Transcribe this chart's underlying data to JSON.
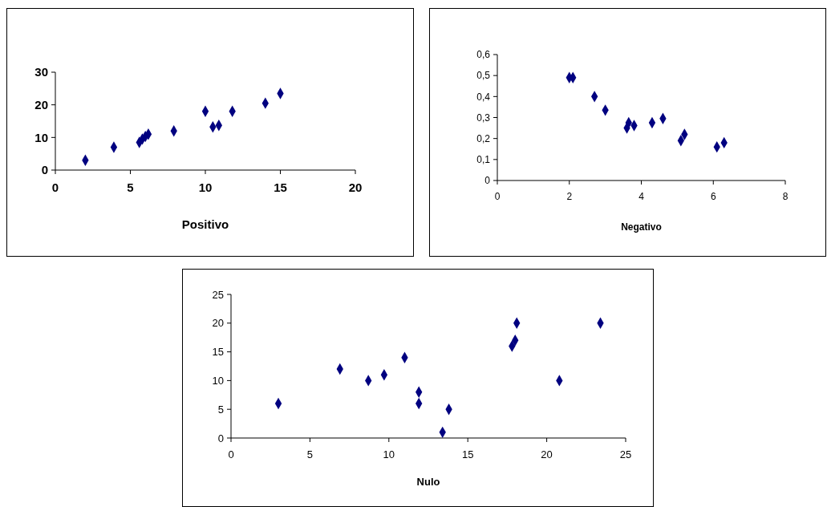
{
  "chart_data": [
    {
      "type": "scatter",
      "xlabel": "Positivo",
      "marker": "diamond",
      "color": "#000080",
      "xlim": [
        0,
        20
      ],
      "xticks": [
        0,
        5,
        10,
        15,
        20
      ],
      "ylim": [
        0,
        30
      ],
      "yticks": [
        0,
        10,
        20,
        30
      ],
      "grid": false,
      "x": [
        2,
        3.9,
        5.6,
        5.8,
        6,
        6.2,
        7.9,
        10,
        10.5,
        10.9,
        11.8,
        14,
        15
      ],
      "values": [
        3,
        7,
        8.5,
        9.5,
        10.3,
        11,
        12,
        18,
        13.2,
        13.7,
        18,
        20.5,
        23.5
      ]
    },
    {
      "type": "scatter",
      "xlabel": "Negativo",
      "marker": "diamond",
      "color": "#000080",
      "xlim": [
        0,
        8
      ],
      "xticks": [
        0,
        2,
        4,
        6,
        8
      ],
      "ylim": [
        0,
        0.6
      ],
      "yticks": [
        0,
        {
          "value": 0.1,
          "label": "0,1"
        },
        {
          "value": 0.2,
          "label": "0,2"
        },
        {
          "value": 0.3,
          "label": "0,3"
        },
        {
          "value": 0.4,
          "label": "0,4"
        },
        {
          "value": 0.5,
          "label": "0,5"
        },
        {
          "value": 0.6,
          "label": "0,6"
        }
      ],
      "grid": false,
      "x": [
        2,
        2.1,
        2.7,
        3,
        3.6,
        3.65,
        3.8,
        4.3,
        4.6,
        5.1,
        5.2,
        6.1,
        6.3
      ],
      "values": [
        0.49,
        0.49,
        0.4,
        0.335,
        0.25,
        0.275,
        0.262,
        0.275,
        0.295,
        0.19,
        0.22,
        0.16,
        0.18
      ]
    },
    {
      "type": "scatter",
      "xlabel": "Nulo",
      "marker": "diamond",
      "color": "#000080",
      "xlim": [
        0,
        25
      ],
      "xticks": [
        0,
        5,
        10,
        15,
        20,
        25
      ],
      "ylim": [
        0,
        25
      ],
      "yticks": [
        0,
        5,
        10,
        15,
        20,
        25
      ],
      "grid": false,
      "x": [
        3,
        6.9,
        8.7,
        9.7,
        11,
        11.9,
        11.9,
        13.4,
        13.8,
        17.8,
        18,
        18.1,
        20.8,
        23.4
      ],
      "values": [
        6,
        12,
        10,
        11,
        14,
        8,
        6,
        1,
        5,
        16,
        17,
        20,
        10,
        20
      ]
    }
  ]
}
